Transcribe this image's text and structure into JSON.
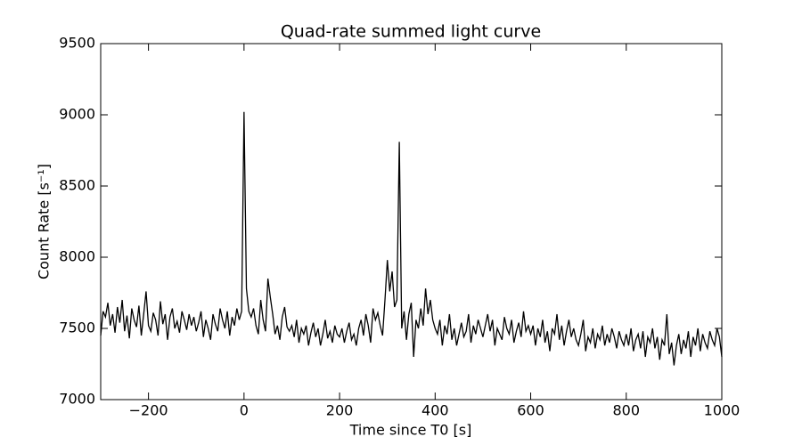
{
  "chart_data": {
    "type": "line",
    "title": "Quad-rate summed light curve",
    "x_label": "Time since T0 [s]",
    "y_label": "Count Rate [s⁻¹]",
    "xlim": [
      -300,
      1000
    ],
    "ylim": [
      7000,
      9500
    ],
    "xticks": [
      {
        "value": -200,
        "label": "−200"
      },
      0,
      200,
      400,
      600,
      800,
      1000
    ],
    "yticks": [
      7000,
      7500,
      8000,
      8500,
      9000,
      9500
    ],
    "x": [
      -300,
      -295,
      -290,
      -285,
      -280,
      -275,
      -270,
      -265,
      -260,
      -255,
      -250,
      -245,
      -240,
      -235,
      -230,
      -225,
      -220,
      -215,
      -210,
      -205,
      -200,
      -195,
      -190,
      -185,
      -180,
      -175,
      -170,
      -165,
      -160,
      -155,
      -150,
      -145,
      -140,
      -135,
      -130,
      -125,
      -120,
      -115,
      -110,
      -105,
      -100,
      -95,
      -90,
      -85,
      -80,
      -75,
      -70,
      -65,
      -60,
      -55,
      -50,
      -45,
      -40,
      -35,
      -30,
      -25,
      -20,
      -15,
      -10,
      -5,
      0,
      5,
      10,
      15,
      20,
      25,
      30,
      35,
      40,
      45,
      50,
      55,
      60,
      65,
      70,
      75,
      80,
      85,
      90,
      95,
      100,
      105,
      110,
      115,
      120,
      125,
      130,
      135,
      140,
      145,
      150,
      155,
      160,
      165,
      170,
      175,
      180,
      185,
      190,
      195,
      200,
      205,
      210,
      215,
      220,
      225,
      230,
      235,
      240,
      245,
      250,
      255,
      260,
      265,
      270,
      275,
      280,
      285,
      290,
      295,
      300,
      305,
      310,
      315,
      320,
      325,
      330,
      335,
      340,
      345,
      350,
      355,
      360,
      365,
      370,
      375,
      380,
      385,
      390,
      395,
      400,
      405,
      410,
      415,
      420,
      425,
      430,
      435,
      440,
      445,
      450,
      455,
      460,
      465,
      470,
      475,
      480,
      485,
      490,
      495,
      500,
      505,
      510,
      515,
      520,
      525,
      530,
      535,
      540,
      545,
      550,
      555,
      560,
      565,
      570,
      575,
      580,
      585,
      590,
      595,
      600,
      605,
      610,
      615,
      620,
      625,
      630,
      635,
      640,
      645,
      650,
      655,
      660,
      665,
      670,
      675,
      680,
      685,
      690,
      695,
      700,
      705,
      710,
      715,
      720,
      725,
      730,
      735,
      740,
      745,
      750,
      755,
      760,
      765,
      770,
      775,
      780,
      785,
      790,
      795,
      800,
      805,
      810,
      815,
      820,
      825,
      830,
      835,
      840,
      845,
      850,
      855,
      860,
      865,
      870,
      875,
      880,
      885,
      890,
      895,
      900,
      905,
      910,
      915,
      920,
      925,
      930,
      935,
      940,
      945,
      950,
      955,
      960,
      965,
      970,
      975,
      980,
      985,
      990,
      995,
      1000
    ],
    "series": [
      {
        "color": "#000000",
        "values": [
          7450,
          7620,
          7580,
          7680,
          7520,
          7600,
          7470,
          7650,
          7540,
          7700,
          7480,
          7590,
          7430,
          7640,
          7560,
          7510,
          7660,
          7450,
          7600,
          7760,
          7520,
          7480,
          7610,
          7560,
          7450,
          7690,
          7530,
          7600,
          7420,
          7580,
          7640,
          7500,
          7550,
          7470,
          7620,
          7560,
          7490,
          7600,
          7520,
          7580,
          7480,
          7540,
          7620,
          7440,
          7560,
          7500,
          7420,
          7600,
          7530,
          7480,
          7640,
          7560,
          7500,
          7620,
          7450,
          7580,
          7520,
          7640,
          7560,
          7620,
          9020,
          7780,
          7620,
          7580,
          7640,
          7520,
          7460,
          7700,
          7560,
          7480,
          7850,
          7720,
          7600,
          7460,
          7520,
          7420,
          7580,
          7650,
          7510,
          7480,
          7520,
          7440,
          7560,
          7400,
          7500,
          7460,
          7520,
          7380,
          7470,
          7540,
          7440,
          7500,
          7380,
          7460,
          7560,
          7430,
          7480,
          7400,
          7520,
          7460,
          7440,
          7500,
          7400,
          7480,
          7540,
          7420,
          7460,
          7380,
          7500,
          7560,
          7450,
          7600,
          7520,
          7400,
          7640,
          7560,
          7610,
          7520,
          7450,
          7700,
          7980,
          7760,
          7900,
          7650,
          7700,
          8810,
          7500,
          7620,
          7420,
          7600,
          7680,
          7300,
          7560,
          7500,
          7640,
          7520,
          7780,
          7600,
          7700,
          7560,
          7500,
          7460,
          7560,
          7380,
          7520,
          7460,
          7600,
          7420,
          7500,
          7380,
          7460,
          7540,
          7440,
          7480,
          7600,
          7400,
          7520,
          7460,
          7560,
          7500,
          7440,
          7520,
          7600,
          7480,
          7560,
          7380,
          7500,
          7460,
          7420,
          7580,
          7500,
          7460,
          7560,
          7400,
          7480,
          7540,
          7440,
          7620,
          7480,
          7520,
          7460,
          7520,
          7380,
          7500,
          7440,
          7560,
          7400,
          7480,
          7340,
          7500,
          7460,
          7600,
          7420,
          7520,
          7380,
          7480,
          7560,
          7440,
          7500,
          7420,
          7380,
          7460,
          7560,
          7340,
          7440,
          7400,
          7500,
          7360,
          7460,
          7420,
          7520,
          7380,
          7460,
          7400,
          7500,
          7440,
          7360,
          7480,
          7420,
          7380,
          7460,
          7380,
          7500,
          7340,
          7420,
          7460,
          7360,
          7480,
          7300,
          7440,
          7400,
          7500,
          7360,
          7440,
          7280,
          7420,
          7380,
          7600,
          7320,
          7400,
          7240,
          7380,
          7460,
          7320,
          7420,
          7360,
          7480,
          7300,
          7440,
          7380,
          7500,
          7340,
          7460,
          7400,
          7360,
          7480,
          7420,
          7380,
          7500,
          7440,
          7300
        ]
      }
    ]
  }
}
